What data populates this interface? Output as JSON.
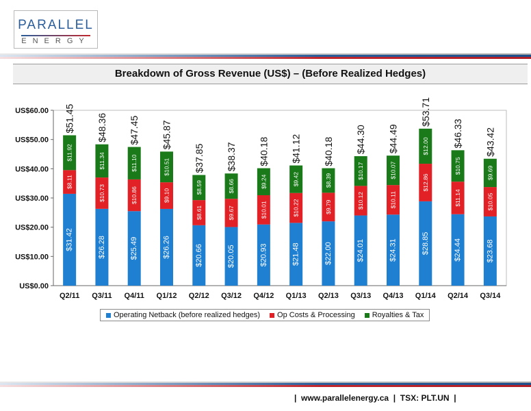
{
  "logo": {
    "top": "PARALLEL",
    "bottom": "ENERGY"
  },
  "title": "Breakdown of Gross Revenue (US$) – (Before Realized Hedges)",
  "footer": {
    "website": "www.parallelenergy.ca",
    "ticker": "TSX: PLT.UN"
  },
  "colors": {
    "netback": "#1f7fd1",
    "opcosts": "#e22127",
    "royalties": "#1a7a1a",
    "blue_stripe": "#2a5d9a",
    "red_stripe": "#c0272d"
  },
  "chart_data": {
    "type": "bar",
    "stacked": true,
    "categories": [
      "Q2/11",
      "Q3/11",
      "Q4/11",
      "Q1/12",
      "Q2/12",
      "Q3/12",
      "Q4/12",
      "Q1/13",
      "Q2/13",
      "Q3/13",
      "Q4/13",
      "Q1/14",
      "Q2/14",
      "Q3/14"
    ],
    "series": [
      {
        "name": "Operating Netback (before realized hedges)",
        "values": [
          31.42,
          26.28,
          25.49,
          26.26,
          20.66,
          20.05,
          20.93,
          21.48,
          22.0,
          24.01,
          24.31,
          28.85,
          24.44,
          23.68
        ],
        "labels": [
          "$31.42",
          "$26.28",
          "$25.49",
          "$26.26",
          "$20.66",
          "$20.05",
          "$20.93",
          "$21.48",
          "$22.00",
          "$24.01",
          "$24.31",
          "$28.85",
          "$24.44",
          "$23.68"
        ]
      },
      {
        "name": "Op Costs & Processing",
        "values": [
          8.11,
          10.73,
          10.86,
          9.1,
          8.61,
          9.67,
          10.01,
          10.22,
          9.79,
          10.12,
          10.11,
          12.86,
          11.14,
          10.05
        ],
        "labels": [
          "$8.11",
          "$10.73",
          "$10.86",
          "$9.10",
          "$8.61",
          "$9.67",
          "$10.01",
          "$10.22",
          "$9.79",
          "$10.12",
          "$10.11",
          "$12.86",
          "$11.14",
          "$10.05"
        ]
      },
      {
        "name": "Royalties & Tax",
        "values": [
          11.92,
          11.34,
          11.1,
          10.51,
          8.59,
          8.66,
          9.24,
          9.42,
          8.39,
          10.17,
          10.07,
          12.0,
          10.75,
          9.69
        ],
        "labels": [
          "$11.92",
          "$11.34",
          "$11.10",
          "$10.51",
          "$8.59",
          "$8.66",
          "$9.24",
          "$9.42",
          "$8.39",
          "$10.17",
          "$10.07",
          "$12.00",
          "$10.75",
          "$9.69"
        ]
      }
    ],
    "totals": [
      "$51.45",
      "$48.36",
      "$47.45",
      "$45.87",
      "$37.85",
      "$38.37",
      "$40.18",
      "$41.12",
      "$40.18",
      "$44.30",
      "$44.49",
      "$53.71",
      "$46.33",
      "$43.42"
    ],
    "yticks": [
      "US$0.00",
      "US$10.00",
      "US$20.00",
      "US$30.00",
      "US$40.00",
      "US$50.00",
      "US$60.00"
    ],
    "ylim": [
      0,
      60
    ],
    "legend_position": "bottom"
  }
}
